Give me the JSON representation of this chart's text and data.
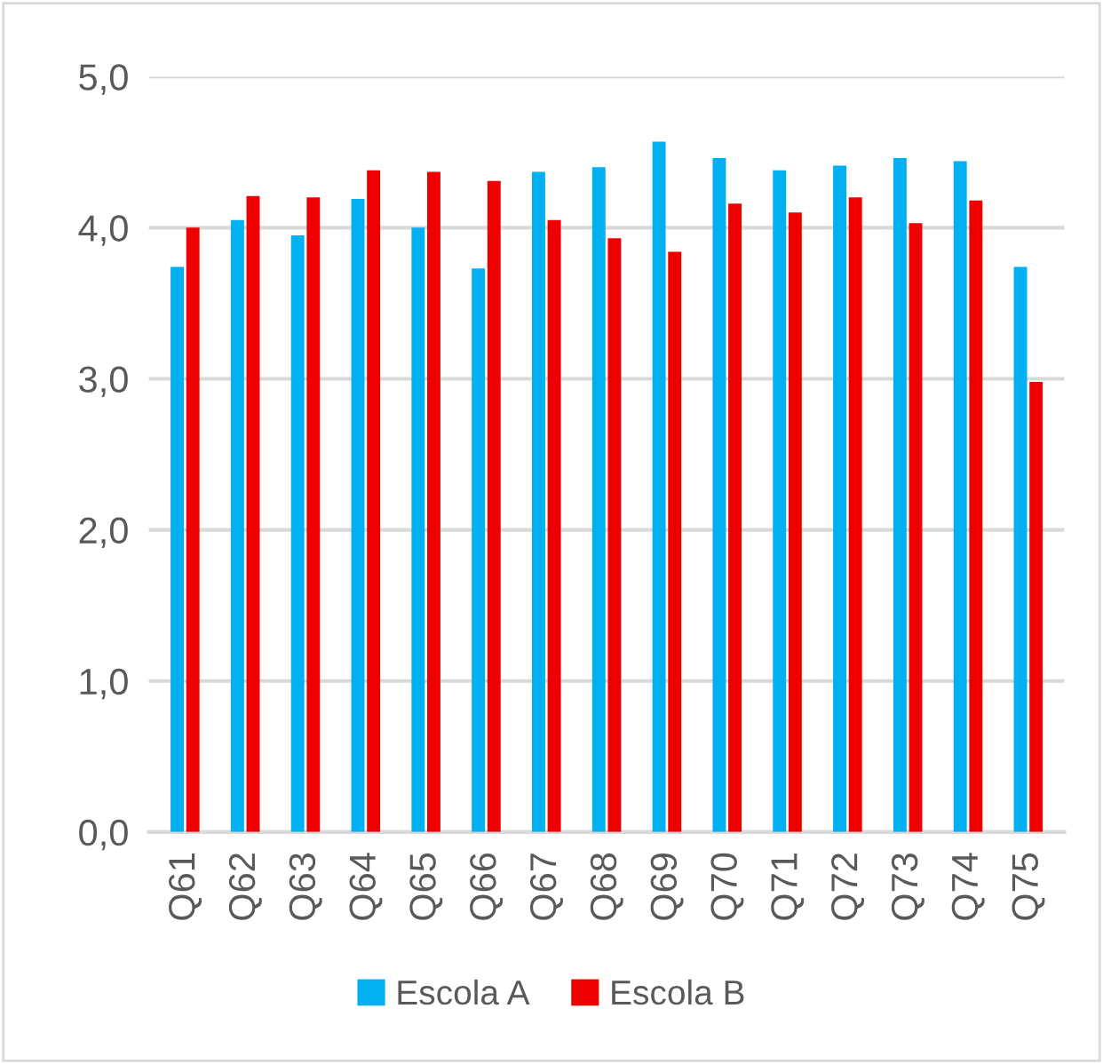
{
  "chart_data": {
    "type": "bar",
    "categories": [
      "Q61",
      "Q62",
      "Q63",
      "Q64",
      "Q65",
      "Q66",
      "Q67",
      "Q68",
      "Q69",
      "Q70",
      "Q71",
      "Q72",
      "Q73",
      "Q74",
      "Q75"
    ],
    "series": [
      {
        "name": "Escola A",
        "color": "#00b0f0",
        "values": [
          3.74,
          4.05,
          3.95,
          4.19,
          4.0,
          3.73,
          4.37,
          4.4,
          4.57,
          4.46,
          4.38,
          4.41,
          4.46,
          4.44,
          3.74
        ]
      },
      {
        "name": "Escola B",
        "color": "#ee0000",
        "values": [
          4.0,
          4.21,
          4.2,
          4.38,
          4.37,
          4.31,
          4.05,
          3.93,
          3.84,
          4.16,
          4.1,
          4.2,
          4.03,
          4.18,
          2.98
        ]
      }
    ],
    "ylim": [
      0,
      5
    ],
    "yticks": [
      {
        "value": 0,
        "label": "0,0"
      },
      {
        "value": 1,
        "label": "1,0"
      },
      {
        "value": 2,
        "label": "2,0"
      },
      {
        "value": 3,
        "label": "3,0"
      },
      {
        "value": 4,
        "label": "4,0"
      },
      {
        "value": 5,
        "label": "5,0"
      }
    ],
    "grid": "y",
    "legend": "bottom"
  }
}
